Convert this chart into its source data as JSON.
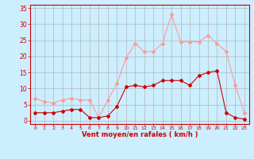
{
  "hours": [
    0,
    1,
    2,
    3,
    4,
    5,
    6,
    7,
    8,
    9,
    10,
    11,
    12,
    13,
    14,
    15,
    16,
    17,
    18,
    19,
    20,
    21,
    22,
    23
  ],
  "wind_avg": [
    2.5,
    2.5,
    2.5,
    3.0,
    3.5,
    3.5,
    1.0,
    1.0,
    1.5,
    4.5,
    10.5,
    11.0,
    10.5,
    11.0,
    12.5,
    12.5,
    12.5,
    11.0,
    14.0,
    15.0,
    15.5,
    2.5,
    1.0,
    0.5
  ],
  "wind_gust": [
    7.0,
    6.0,
    5.5,
    6.5,
    7.0,
    6.5,
    6.5,
    1.0,
    6.5,
    11.5,
    19.5,
    24.0,
    21.5,
    21.5,
    24.0,
    33.0,
    24.5,
    24.5,
    24.5,
    26.5,
    24.0,
    21.5,
    11.0,
    2.5
  ],
  "avg_color": "#cc0000",
  "gust_color": "#ff9999",
  "bg_color": "#cceeff",
  "grid_color": "#aaaaaa",
  "axis_color": "#cc0000",
  "xlabel": "Vent moyen/en rafales ( km/h )",
  "yticks": [
    0,
    5,
    10,
    15,
    20,
    25,
    30,
    35
  ],
  "ylim": [
    -1,
    36
  ],
  "xlim": [
    -0.5,
    23.5
  ]
}
